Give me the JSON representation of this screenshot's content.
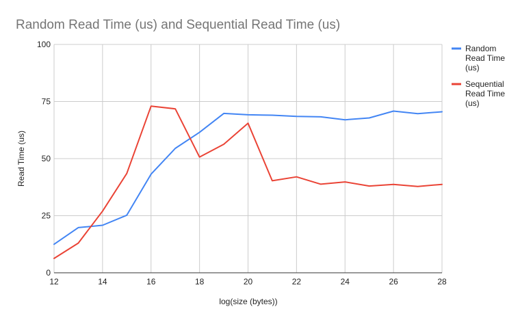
{
  "chart_data": {
    "type": "line",
    "title": "Random Read Time (us) and Sequential Read Time (us)",
    "xlabel": "log(size (bytes))",
    "ylabel": "Read Time (us)",
    "x": [
      12,
      13,
      14,
      15,
      16,
      17,
      18,
      19,
      20,
      21,
      22,
      23,
      24,
      25,
      26,
      27,
      28
    ],
    "xlim": [
      12,
      28
    ],
    "ylim": [
      0,
      100
    ],
    "x_ticks": [
      12,
      14,
      16,
      18,
      20,
      22,
      24,
      26,
      28
    ],
    "y_ticks": [
      0,
      25,
      50,
      75,
      100
    ],
    "grid": true,
    "legend_position": "right",
    "series": [
      {
        "name": "Random Read Time (us)",
        "legend_lines": [
          "Random",
          "Read Time",
          "(us)"
        ],
        "color": "#4285f4",
        "values": [
          12.5,
          19.8,
          20.8,
          25.2,
          43.2,
          54.5,
          61.5,
          69.8,
          69.2,
          69.0,
          68.5,
          68.3,
          67.0,
          67.8,
          70.8,
          69.7,
          70.5
        ]
      },
      {
        "name": "Sequential Read Time (us)",
        "legend_lines": [
          "Sequential",
          "Read Time",
          "(us)"
        ],
        "color": "#ea4335",
        "values": [
          6.3,
          13.0,
          27.0,
          43.5,
          73.0,
          71.8,
          50.7,
          56.3,
          65.5,
          40.3,
          42.0,
          38.8,
          39.8,
          38.0,
          38.7,
          37.8,
          38.7
        ]
      }
    ]
  }
}
